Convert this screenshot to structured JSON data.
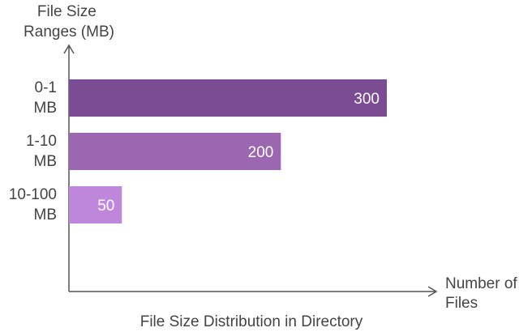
{
  "chart_data": {
    "type": "bar",
    "orientation": "horizontal",
    "title": "File Size Distribution in Directory",
    "xlabel": "Number of Files",
    "ylabel": "File Size Ranges (MB)",
    "categories": [
      "0-1 MB",
      "1-10 MB",
      "10-100 MB"
    ],
    "values": [
      300,
      200,
      50
    ],
    "value_labels": [
      "300",
      "200",
      "50"
    ],
    "colors": [
      "#7b4b94",
      "#9b67b0",
      "#bf87db"
    ],
    "xlim": [
      0,
      340
    ],
    "grid": false,
    "legend": "none"
  }
}
